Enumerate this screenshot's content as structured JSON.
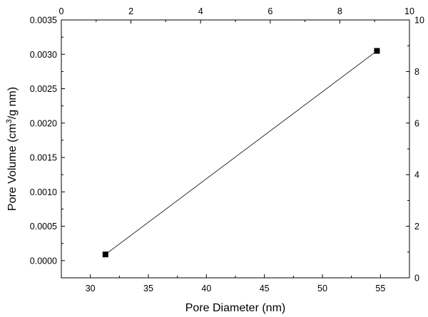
{
  "chart_data": {
    "type": "line",
    "xlabel": "Pore Diameter (nm)",
    "ylabel_parts": [
      "Pore Volume (cm",
      "3",
      "/g nm)"
    ],
    "xlim": [
      27.5,
      57.5
    ],
    "ylim": [
      -0.00025,
      0.0035
    ],
    "x_ticks": [
      30,
      35,
      40,
      45,
      50,
      55
    ],
    "x_tick_labels": [
      "30",
      "35",
      "40",
      "45",
      "50",
      "55"
    ],
    "y_ticks": [
      0,
      0.0005,
      0.001,
      0.0015,
      0.002,
      0.0025,
      0.003,
      0.0035
    ],
    "y_tick_labels": [
      "0.0000",
      "0.0005",
      "0.0010",
      "0.0015",
      "0.0020",
      "0.0025",
      "0.0030",
      "0.0035"
    ],
    "top_axis": {
      "lim": [
        0,
        10
      ],
      "ticks": [
        0,
        2,
        4,
        6,
        8,
        10
      ],
      "tick_labels": [
        "0",
        "2",
        "4",
        "6",
        "8",
        "10"
      ]
    },
    "right_axis": {
      "lim": [
        0,
        10
      ],
      "ticks": [
        0,
        2,
        4,
        6,
        8,
        10
      ],
      "tick_labels": [
        "0",
        "2",
        "4",
        "6",
        "8",
        "10"
      ]
    },
    "series": [
      {
        "x": [
          31.3,
          54.7
        ],
        "y": [
          9e-05,
          0.00305
        ],
        "marker": "square",
        "color": "#000000"
      }
    ],
    "grid": false
  }
}
